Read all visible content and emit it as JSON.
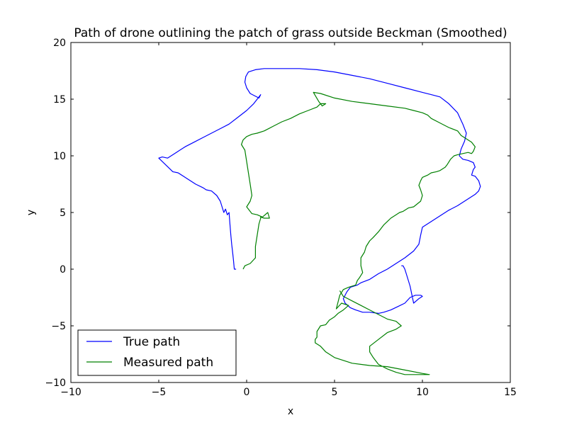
{
  "chart_data": {
    "type": "line",
    "title": "Path of drone outlining the patch of grass outside Beckman (Smoothed)",
    "xlabel": "x",
    "ylabel": "y",
    "xlim": [
      -10,
      15
    ],
    "ylim": [
      -10,
      20
    ],
    "xticks": [
      -10,
      -5,
      0,
      5,
      10,
      15
    ],
    "yticks": [
      -10,
      -5,
      0,
      5,
      10,
      15,
      20
    ],
    "grid": false,
    "legend_position": "lower-left",
    "series": [
      {
        "name": "True path",
        "color": "#0000ff",
        "x": [
          -0.6,
          -0.7,
          -0.75,
          -0.8,
          -0.85,
          -0.9,
          -0.95,
          -1.0,
          -1.1,
          -1.2,
          -1.3,
          -1.5,
          -1.7,
          -2.0,
          -2.3,
          -2.5,
          -2.9,
          -3.3,
          -3.6,
          -3.9,
          -4.2,
          -4.6,
          -5.0,
          -4.8,
          -4.5,
          -4.0,
          -3.5,
          -3.0,
          -2.5,
          -2.0,
          -1.5,
          -1.0,
          -0.5,
          0.0,
          0.4,
          0.6,
          0.8,
          0.7,
          0.2,
          0.0,
          -0.1,
          -0.05,
          0.1,
          0.5,
          1.0,
          2.0,
          3.0,
          4.0,
          5.0,
          6.0,
          7.0,
          8.0,
          9.0,
          10.0,
          10.5,
          11.0,
          11.5,
          12.0,
          12.3,
          12.5,
          12.4,
          12.2,
          12.1,
          12.3,
          12.6,
          12.9,
          13.0,
          12.9,
          12.8,
          13.0,
          13.2,
          13.3,
          13.2,
          13.0,
          12.5,
          12.0,
          11.5,
          11.0,
          10.5,
          10.0,
          9.9,
          9.8,
          9.5,
          9.0,
          8.5,
          8.0,
          7.5,
          7.0,
          6.5,
          6.3,
          5.9,
          5.7,
          5.5,
          5.6,
          5.9,
          6.2,
          6.6,
          7.0,
          7.5,
          7.8,
          8.2,
          8.6,
          9.0,
          9.3,
          9.6,
          9.9,
          10.0,
          9.8,
          9.5,
          9.3,
          9.1,
          9.0,
          8.9,
          8.8
        ],
        "y": [
          0.0,
          0.0,
          0.8,
          1.5,
          2.2,
          3.0,
          4.0,
          5.0,
          4.8,
          5.3,
          5.0,
          6.0,
          6.5,
          6.9,
          7.0,
          7.2,
          7.5,
          7.9,
          8.2,
          8.5,
          8.6,
          9.2,
          9.8,
          9.9,
          9.8,
          10.3,
          10.8,
          11.2,
          11.6,
          12.0,
          12.4,
          12.8,
          13.4,
          14.0,
          14.6,
          15.0,
          15.4,
          15.1,
          15.5,
          16.0,
          16.5,
          17.0,
          17.4,
          17.6,
          17.7,
          17.7,
          17.7,
          17.6,
          17.4,
          17.1,
          16.8,
          16.4,
          16.0,
          15.6,
          15.4,
          15.2,
          14.6,
          13.8,
          12.8,
          12.0,
          11.3,
          10.6,
          10.0,
          9.7,
          9.6,
          9.4,
          9.0,
          8.8,
          8.3,
          8.2,
          7.8,
          7.3,
          6.9,
          6.6,
          6.1,
          5.6,
          5.2,
          4.7,
          4.2,
          3.7,
          3.0,
          2.2,
          1.6,
          1.0,
          0.5,
          0.0,
          -0.4,
          -0.9,
          -1.2,
          -1.4,
          -1.6,
          -2.0,
          -2.6,
          -3.0,
          -3.4,
          -3.6,
          -3.8,
          -3.8,
          -3.9,
          -3.8,
          -3.6,
          -3.3,
          -3.0,
          -2.5,
          -2.3,
          -2.3,
          -2.4,
          -2.6,
          -3.0,
          -1.5,
          -0.5,
          0.0,
          0.3,
          0.3
        ]
      },
      {
        "name": "Measured path",
        "color": "#008000",
        "x": [
          -0.2,
          -0.1,
          0.2,
          0.5,
          0.5,
          0.6,
          0.7,
          0.8,
          0.8,
          1.0,
          1.3,
          1.2,
          0.9,
          0.6,
          0.3,
          0.0,
          0.2,
          0.3,
          0.2,
          0.1,
          0.0,
          -0.1,
          -0.3,
          -0.2,
          0.0,
          0.3,
          0.6,
          1.0,
          1.5,
          2.0,
          2.5,
          3.0,
          3.5,
          4.0,
          4.2,
          4.5,
          4.3,
          4.1,
          3.8,
          4.2,
          5.0,
          6.0,
          7.0,
          8.0,
          9.0,
          9.5,
          10.0,
          10.3,
          10.5,
          11.0,
          11.5,
          12.0,
          12.2,
          12.4,
          12.6,
          12.8,
          13.0,
          12.9,
          12.8,
          12.6,
          12.3,
          12.0,
          11.8,
          11.6,
          11.4,
          11.3,
          11.0,
          10.8,
          10.5,
          10.3,
          10.0,
          9.9,
          9.8,
          9.9,
          10.0,
          9.9,
          9.5,
          9.2,
          8.9,
          8.7,
          8.5,
          8.2,
          8.0,
          7.8,
          7.5,
          7.2,
          7.0,
          6.8,
          6.7,
          6.5,
          6.5,
          6.6,
          6.4,
          6.3,
          6.2,
          5.8,
          5.5,
          5.3,
          5.1,
          5.4,
          5.8,
          5.5,
          5.2,
          5.0,
          4.7,
          4.5,
          4.2,
          4.0,
          4.0,
          3.9,
          3.9,
          4.2,
          4.5,
          5.0,
          6.0,
          7.0,
          8.0,
          9.0,
          10.0,
          10.4,
          10.0,
          9.0,
          8.5,
          8.0,
          7.5,
          7.2,
          7.0,
          7.0,
          7.5,
          8.0,
          8.5,
          8.8,
          8.5,
          8.0,
          7.5,
          7.0,
          6.5,
          6.0,
          5.5,
          5.3
        ],
        "y": [
          0.0,
          0.3,
          0.5,
          1.0,
          2.0,
          3.0,
          4.0,
          4.5,
          4.6,
          4.5,
          4.5,
          5.0,
          4.6,
          4.8,
          4.9,
          5.5,
          6.0,
          6.5,
          7.5,
          8.5,
          9.5,
          10.5,
          11.0,
          11.4,
          11.7,
          11.9,
          12.0,
          12.2,
          12.6,
          13.0,
          13.3,
          13.7,
          14.0,
          14.3,
          14.6,
          14.6,
          14.4,
          14.8,
          15.6,
          15.5,
          15.1,
          14.8,
          14.6,
          14.4,
          14.2,
          14.0,
          13.8,
          13.6,
          13.3,
          12.9,
          12.5,
          12.2,
          11.8,
          11.6,
          11.4,
          11.2,
          10.8,
          10.4,
          10.2,
          10.3,
          10.2,
          10.1,
          10.0,
          9.7,
          9.2,
          9.0,
          8.7,
          8.6,
          8.5,
          8.3,
          8.1,
          7.8,
          7.4,
          7.0,
          6.5,
          6.0,
          5.5,
          5.4,
          5.1,
          5.0,
          4.8,
          4.5,
          4.2,
          3.9,
          3.3,
          2.8,
          2.5,
          2.0,
          1.5,
          1.0,
          0.3,
          -0.3,
          -0.8,
          -1.0,
          -1.4,
          -1.6,
          -1.8,
          -2.3,
          -3.5,
          -3.0,
          -3.2,
          -3.6,
          -3.9,
          -4.2,
          -4.5,
          -4.9,
          -5.0,
          -5.5,
          -6.0,
          -6.2,
          -6.5,
          -6.8,
          -7.3,
          -7.8,
          -8.3,
          -8.5,
          -8.6,
          -8.9,
          -9.2,
          -9.3,
          -9.3,
          -9.3,
          -9.1,
          -8.8,
          -8.4,
          -7.8,
          -7.3,
          -6.8,
          -6.2,
          -5.6,
          -5.3,
          -5.0,
          -4.6,
          -4.4,
          -4.0,
          -3.6,
          -3.2,
          -2.8,
          -2.4,
          -1.9
        ]
      }
    ]
  }
}
